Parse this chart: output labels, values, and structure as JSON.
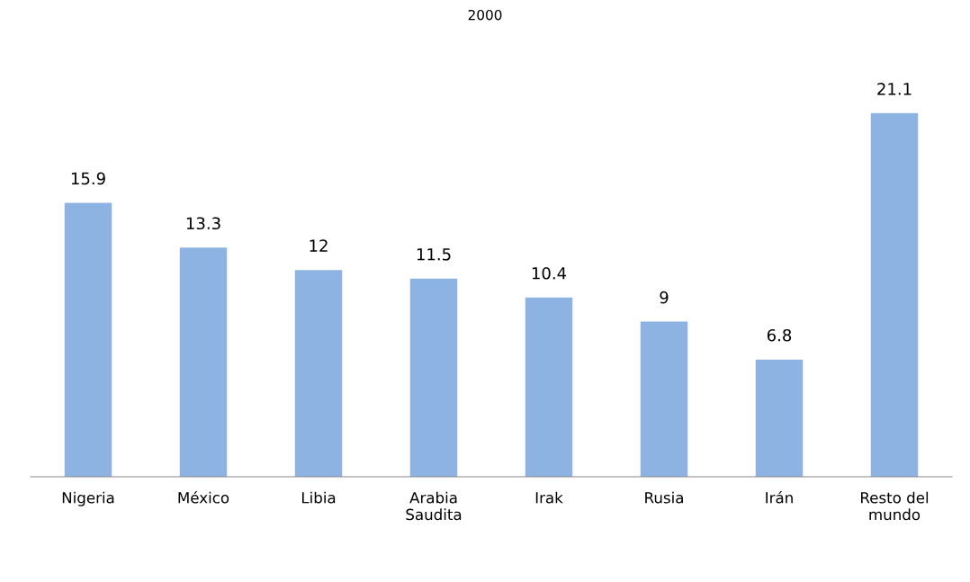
{
  "chart_data": {
    "type": "bar",
    "title": "2000",
    "categories": [
      "Nigeria",
      "México",
      "Libia",
      "Arabia Saudita",
      "Irak",
      "Rusia",
      "Irán",
      "Resto del mundo"
    ],
    "values": [
      15.9,
      13.3,
      12,
      11.5,
      10.4,
      9,
      6.8,
      21.1
    ],
    "color": "#8db3e2",
    "data_labels": true,
    "grid": false,
    "legend": false
  }
}
